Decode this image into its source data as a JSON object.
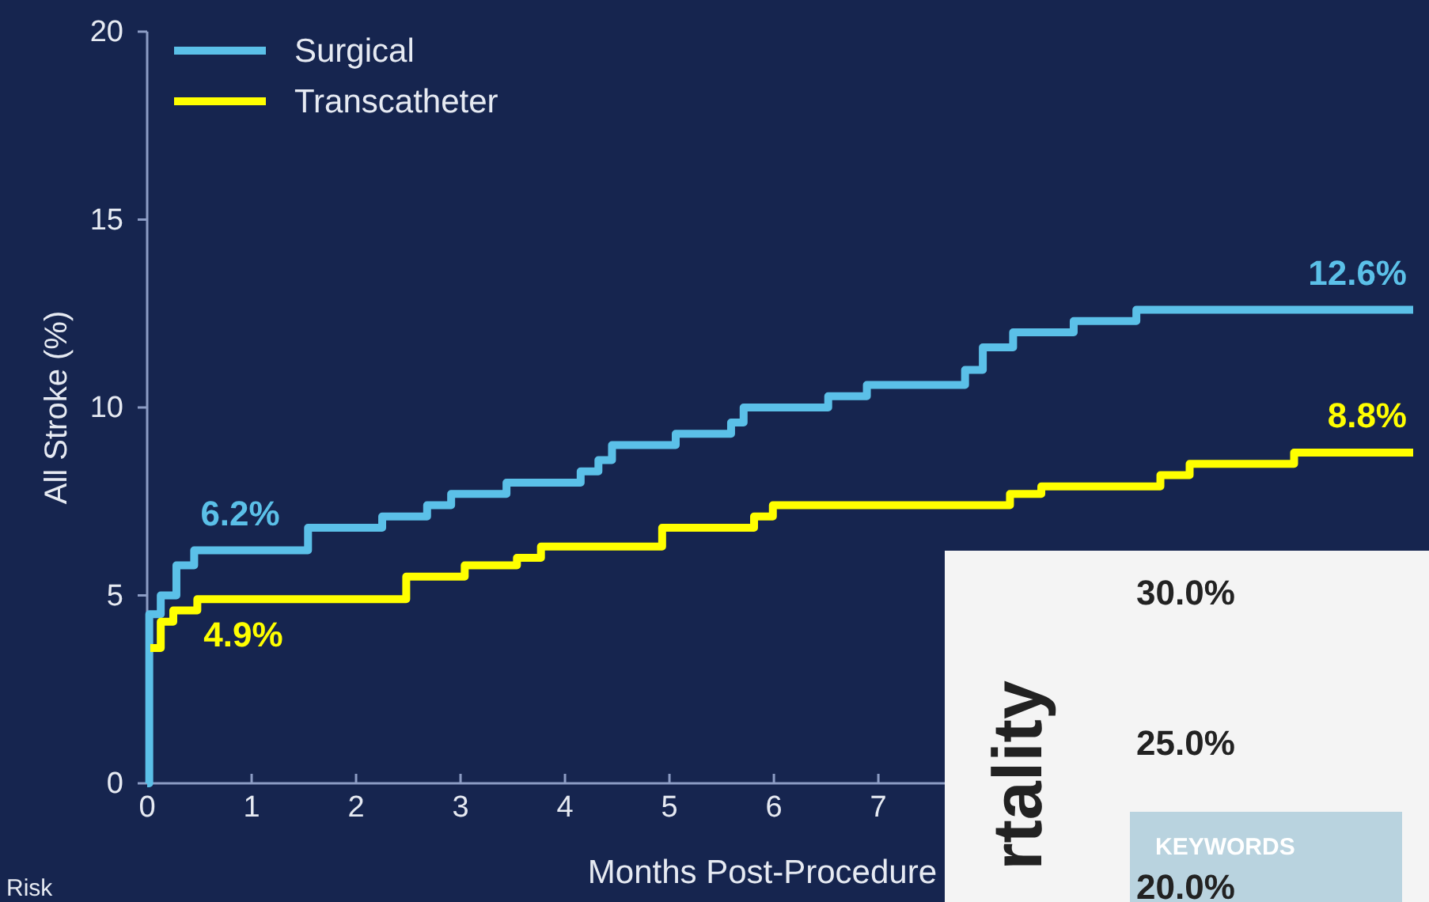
{
  "chart_data": {
    "type": "step",
    "ylabel": "All Stroke (%)",
    "xlabel": "Months Post-Procedure",
    "xlim": [
      0,
      12.12
    ],
    "ylim": [
      0,
      20
    ],
    "xticks": [
      0,
      1,
      2,
      3,
      4,
      5,
      6,
      7
    ],
    "yticks": [
      0,
      5,
      10,
      15,
      20
    ],
    "grid": false,
    "legend": "top left",
    "line_style": "solid",
    "marker": "none",
    "series": [
      {
        "name": "Surgical",
        "color": "#5bc0e8",
        "x": [
          0,
          0.02,
          0.13,
          0.28,
          0.45,
          1.54,
          2.25,
          2.68,
          2.91,
          3.44,
          4.15,
          4.32,
          4.45,
          5.06,
          5.59,
          5.71,
          6.52,
          6.89,
          7.83,
          8.0,
          8.29,
          8.87,
          9.47,
          12.12
        ],
        "values": [
          0,
          4.5,
          5.0,
          5.8,
          6.2,
          6.8,
          7.1,
          7.4,
          7.7,
          8.0,
          8.3,
          8.6,
          9.0,
          9.3,
          9.6,
          10.0,
          10.3,
          10.6,
          11.0,
          11.6,
          12.0,
          12.3,
          12.6,
          12.6
        ]
      },
      {
        "name": "Transcatheter",
        "color": "#ffff00",
        "x": [
          0.03,
          0.13,
          0.25,
          0.48,
          2.48,
          3.04,
          3.54,
          3.77,
          4.93,
          5.81,
          5.99,
          8.26,
          8.56,
          9.7,
          9.98,
          10.98,
          12.12
        ],
        "values": [
          3.6,
          4.3,
          4.6,
          4.9,
          5.5,
          5.8,
          6.0,
          6.3,
          6.8,
          7.1,
          7.4,
          7.7,
          7.9,
          8.2,
          8.5,
          8.8,
          8.8
        ]
      }
    ],
    "annotations": [
      {
        "text": "6.2%",
        "x": 0.45,
        "y": 6.2
      },
      {
        "text": "4.9%",
        "x": 0.48,
        "y": 4.9
      },
      {
        "text": "12.6%",
        "x": 12.12,
        "y": 12.6
      },
      {
        "text": "8.8%",
        "x": 12.12,
        "y": 8.8
      },
      "Risk",
      "30.0%",
      "25.0%",
      "20.0%",
      "rtality",
      "KEYWORDS"
    ]
  }
}
